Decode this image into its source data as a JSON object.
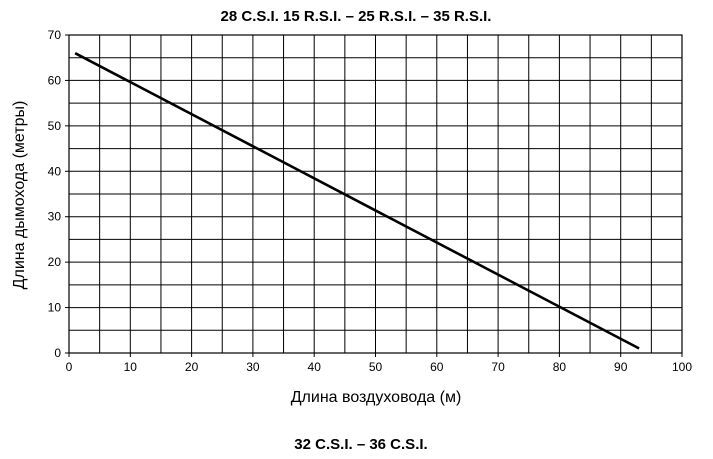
{
  "chart_data": {
    "type": "line",
    "title": "28 C.S.I. 15 R.S.I. – 25 R.S.I. – 35 R.S.I.",
    "footer_title": "32 C.S.I. – 36 C.S.I.",
    "xlabel": "Длина воздуховода (м)",
    "ylabel": "Длина дымохода (метры)",
    "xlim": [
      0,
      100
    ],
    "ylim": [
      0,
      70
    ],
    "grid": true,
    "x_minor_step": 5,
    "y_minor_step": 5,
    "x_ticks": [
      0,
      10,
      20,
      30,
      40,
      50,
      60,
      70,
      80,
      90,
      100
    ],
    "y_ticks": [
      0,
      10,
      20,
      30,
      40,
      50,
      60,
      70
    ],
    "series": [
      {
        "points": [
          [
            1,
            66
          ],
          [
            93,
            1
          ]
        ]
      }
    ],
    "colors": {
      "line": "#000000",
      "grid": "#000000"
    }
  }
}
